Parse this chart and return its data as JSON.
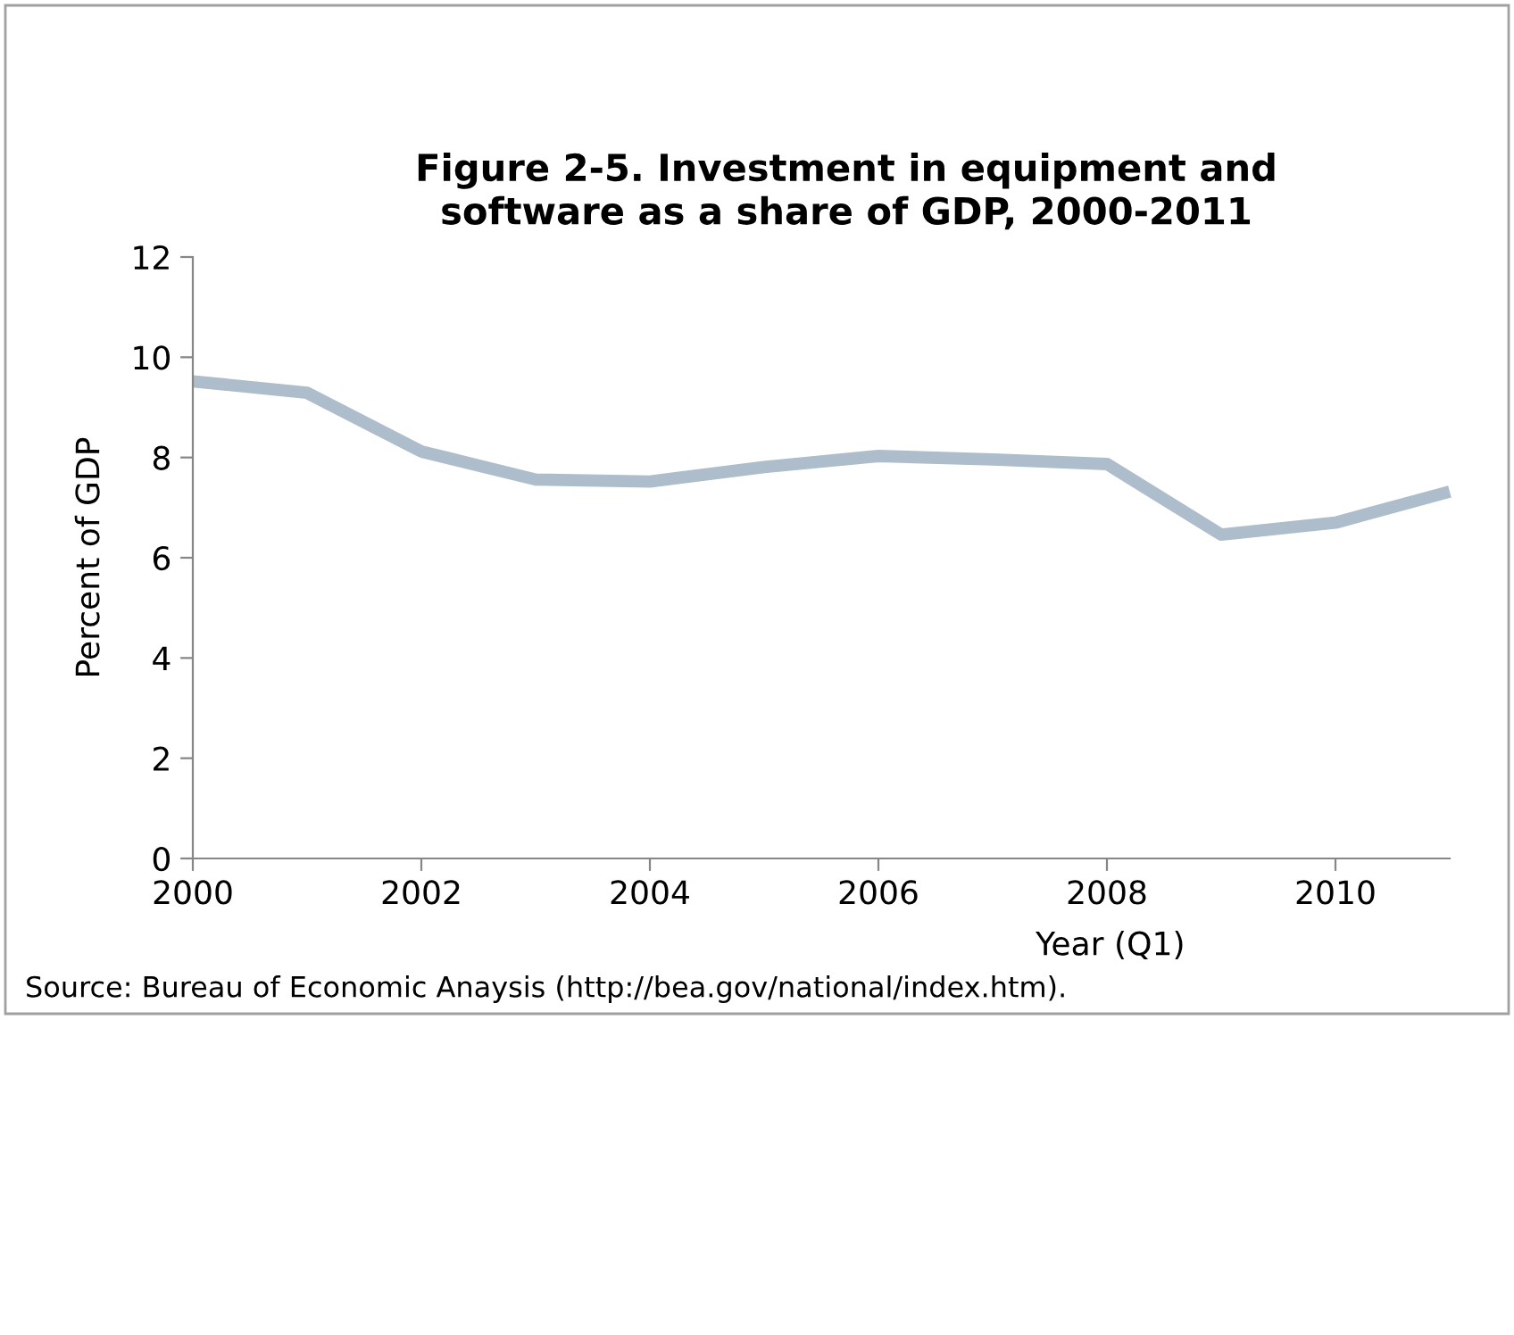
{
  "chart_data": {
    "type": "line",
    "title": "Figure 2-5. Investment in equipment and\nsoftware as a share of GDP, 2000-2011",
    "xlabel": "Year (Q1)",
    "ylabel": "Percent of GDP",
    "x": [
      2000,
      2001,
      2002,
      2003,
      2004,
      2005,
      2006,
      2007,
      2008,
      2009,
      2010,
      2011
    ],
    "series": [
      {
        "color": "#adbdcc",
        "values": [
          9.52,
          9.29,
          8.12,
          7.56,
          7.52,
          7.81,
          8.03,
          7.96,
          7.87,
          6.46,
          6.7,
          7.32
        ]
      }
    ],
    "xlim": [
      2000,
      2011
    ],
    "xticks": [
      2000,
      2002,
      2004,
      2006,
      2008,
      2010
    ],
    "ylim": [
      0,
      12
    ],
    "yticks": [
      0,
      2,
      4,
      6,
      8,
      10,
      12
    ],
    "grid": false,
    "legend": false,
    "marker": "none",
    "line_style": "solid",
    "annotations": [
      "Source: Bureau of Economic Anaysis (http://bea.gov/national/index.htm)."
    ]
  }
}
